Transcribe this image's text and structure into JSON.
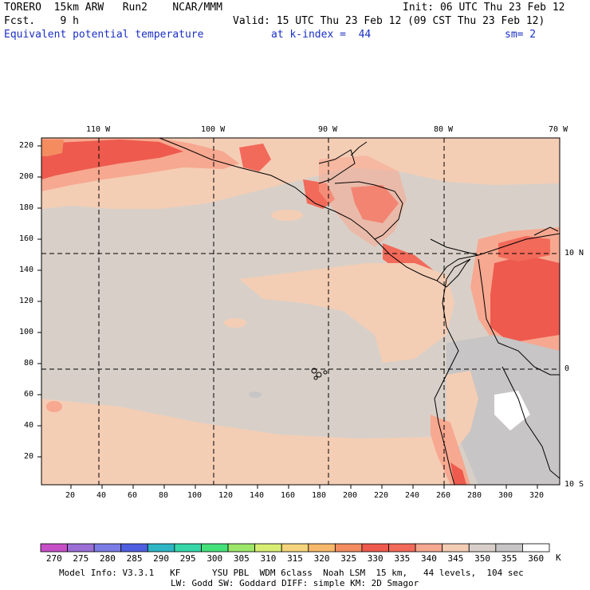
{
  "header": {
    "model": "TORERO  15km ARW   Run2    NCAR/MMM",
    "init": "Init: 06 UTC Thu 23 Feb 12",
    "fcst": "Fcst.    9 h",
    "valid": "Valid: 15 UTC Thu 23 Feb 12 (09 CST Thu 23 Feb 12)",
    "field": "Equivalent potential temperature",
    "level": "at k-index =  44",
    "smooth": "sm= 2"
  },
  "axes": {
    "top_lon_labels": [
      "110 W",
      "100 W",
      "90 W",
      "80 W",
      "70 W"
    ],
    "right_lat_labels": [
      "10 N",
      "0",
      "10 S"
    ],
    "left_grid_labels": [
      "220",
      "200",
      "180",
      "160",
      "140",
      "120",
      "100",
      "80",
      "60",
      "40",
      "20"
    ],
    "bottom_grid_labels": [
      "20",
      "40",
      "60",
      "80",
      "100",
      "120",
      "140",
      "160",
      "180",
      "200",
      "220",
      "240",
      "260",
      "280",
      "300",
      "320"
    ]
  },
  "colorbar": {
    "labels": [
      "270",
      "275",
      "280",
      "285",
      "290",
      "295",
      "300",
      "305",
      "310",
      "315",
      "320",
      "325",
      "330",
      "335",
      "340",
      "345",
      "350",
      "355",
      "360"
    ],
    "unit": "K",
    "colors": [
      "#c64fc6",
      "#9b6fd6",
      "#7c7ce6",
      "#4f5fe0",
      "#2fb5c4",
      "#36d6a8",
      "#44e07a",
      "#9ce66a",
      "#d6ee72",
      "#f4d47c",
      "#f6b86a",
      "#f48c60",
      "#ee5a4e",
      "#f26a5a",
      "#f7a890",
      "#f4cdb5",
      "#d8d0c8",
      "#c7c5c5",
      "#ffffff"
    ]
  },
  "footer": {
    "line1": "Model Info: V3.3.1   KF      YSU PBL  WDM 6class  Noah LSM  15 km,   44 levels,  104 sec",
    "line2": "LW: Godd SW: Goddard DIFF: simple KM: 2D Smagor"
  }
}
